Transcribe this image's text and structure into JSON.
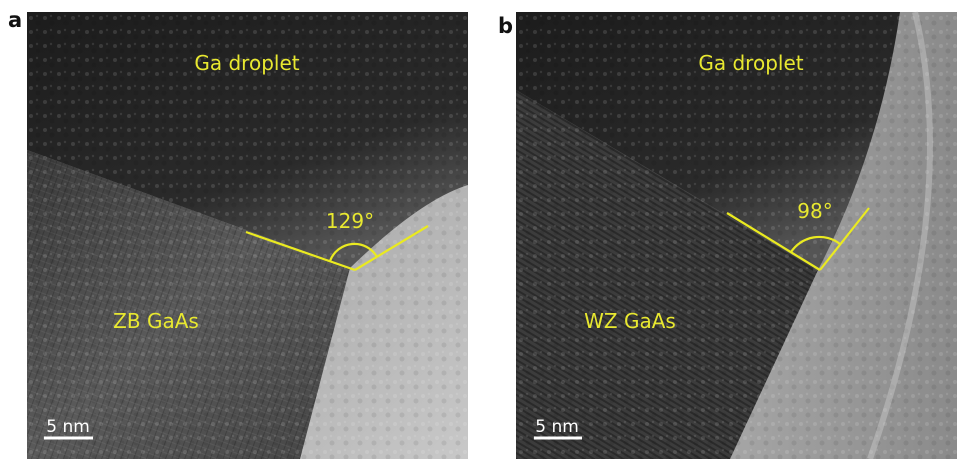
{
  "panels": [
    {
      "label": "a",
      "droplet": "Ga droplet",
      "angle": "129°",
      "crystal": "ZB GaAs",
      "scale_bar": "5 nm"
    },
    {
      "label": "b",
      "droplet": "Ga droplet",
      "angle": "98°",
      "crystal": "WZ GaAs",
      "scale_bar": "5 nm"
    }
  ]
}
